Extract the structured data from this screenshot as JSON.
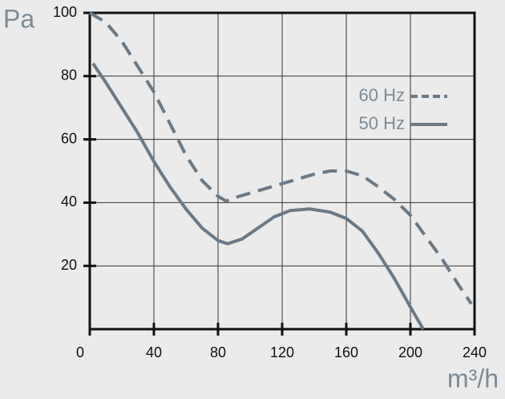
{
  "chart_data": {
    "type": "line",
    "ylabel": "Pa",
    "xlabel": "m³/h",
    "xlim": [
      0,
      240
    ],
    "xticks": [
      0,
      40,
      80,
      120,
      160,
      200,
      240
    ],
    "ylim": [
      0,
      100
    ],
    "yticks": [
      20,
      40,
      60,
      80,
      100
    ],
    "grid": true,
    "legend": "right",
    "series": [
      {
        "name": "60 Hz",
        "color": "#6b7985",
        "dashed": true,
        "x": [
          0,
          10,
          20,
          30,
          40,
          50,
          60,
          70,
          80,
          85,
          90,
          100,
          110,
          120,
          130,
          140,
          150,
          160,
          170,
          180,
          190,
          200,
          210,
          220,
          230,
          238
        ],
        "values": [
          100,
          97,
          91,
          83,
          75,
          65,
          55,
          47,
          42,
          40.5,
          41.5,
          43,
          44.5,
          46,
          47.5,
          49,
          50,
          50,
          48.5,
          45,
          41,
          36,
          29,
          22,
          14,
          8
        ]
      },
      {
        "name": "50 Hz",
        "color": "#6b7985",
        "dashed": false,
        "x": [
          2,
          10,
          20,
          30,
          40,
          50,
          60,
          70,
          80,
          86,
          95,
          105,
          115,
          125,
          137,
          150,
          160,
          170,
          180,
          190,
          200,
          208
        ],
        "values": [
          84,
          78,
          70,
          62,
          53,
          45,
          38,
          32,
          28,
          27,
          28.5,
          32,
          35.5,
          37.5,
          38,
          37,
          35,
          31,
          24,
          16,
          7,
          0
        ]
      }
    ]
  }
}
